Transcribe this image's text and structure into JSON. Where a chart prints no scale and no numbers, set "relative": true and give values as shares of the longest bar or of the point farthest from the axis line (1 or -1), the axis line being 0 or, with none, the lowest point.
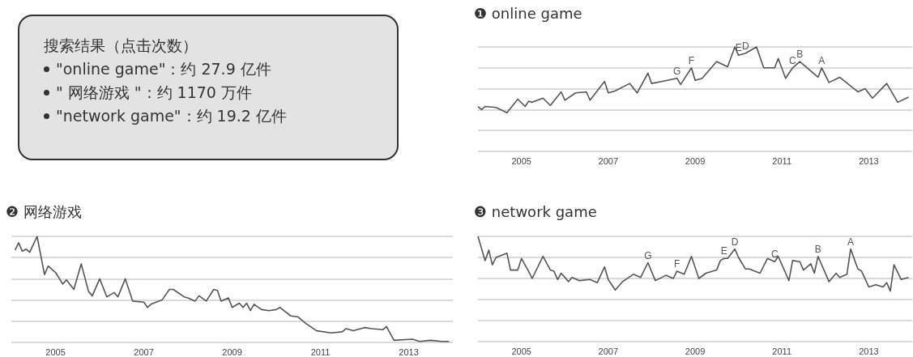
{
  "chart_data": [
    {
      "type": "other",
      "title": "搜索结果（点击次数）",
      "annotations": [
        "\"online game\"：约 27.9 亿件",
        "\" 网络游戏 \"：约 1170 万件",
        "\"network game\"：约 19.2 亿件"
      ]
    },
    {
      "type": "line",
      "title": "❶ online game",
      "relative": true,
      "color": "#555555",
      "grid": "y",
      "tick_labels": "x",
      "marker": "none",
      "xlim": [
        "2004-01",
        "2014-01"
      ],
      "xticks": [
        "2005",
        "2007",
        "2009",
        "2011",
        "2013"
      ],
      "x": [
        "2004-01",
        "2004-02",
        "2004-03",
        "2004-06",
        "2004-09",
        "2004-12",
        "2005-02",
        "2005-03",
        "2005-04",
        "2005-07",
        "2005-09",
        "2005-12",
        "2006-01",
        "2006-04",
        "2006-07",
        "2006-08",
        "2006-12",
        "2007-01",
        "2007-03",
        "2007-07",
        "2007-09",
        "2007-12",
        "2008-01",
        "2008-04",
        "2008-08",
        "2008-09",
        "2008-12",
        "2009-01",
        "2009-03",
        "2009-07",
        "2009-10",
        "2009-12",
        "2010-01",
        "2010-03",
        "2010-06",
        "2010-08",
        "2010-11",
        "2010-12",
        "2011-02",
        "2011-04",
        "2011-06",
        "2011-11",
        "2011-12",
        "2012-02",
        "2012-05",
        "2012-10",
        "2012-12",
        "2013-02",
        "2013-06",
        "2013-09",
        "2013-12"
      ],
      "values": [
        0.43,
        0.4,
        0.43,
        0.42,
        0.37,
        0.5,
        0.43,
        0.48,
        0.47,
        0.51,
        0.44,
        0.57,
        0.49,
        0.56,
        0.57,
        0.49,
        0.67,
        0.56,
        0.58,
        0.65,
        0.56,
        0.75,
        0.65,
        0.67,
        0.7,
        0.64,
        0.8,
        0.68,
        0.7,
        0.86,
        0.81,
        1.0,
        0.92,
        0.94,
        1.0,
        0.8,
        0.8,
        0.89,
        0.7,
        0.8,
        0.86,
        0.71,
        0.8,
        0.66,
        0.71,
        0.57,
        0.6,
        0.51,
        0.65,
        0.47,
        0.52
      ],
      "annotations": [
        {
          "text": "G",
          "x": "2008-08",
          "y": 0.7
        },
        {
          "text": "F",
          "x": "2008-12",
          "y": 0.8
        },
        {
          "text": "E",
          "x": "2010-01",
          "y": 0.92
        },
        {
          "text": "D",
          "x": "2010-03",
          "y": 0.94
        },
        {
          "text": "C",
          "x": "2011-04",
          "y": 0.8
        },
        {
          "text": "B",
          "x": "2011-06",
          "y": 0.86
        },
        {
          "text": "A",
          "x": "2011-12",
          "y": 0.8
        }
      ]
    },
    {
      "type": "line",
      "title": "❷ 网络游戏",
      "relative": true,
      "color": "#555555",
      "grid": "y",
      "tick_labels": "x",
      "marker": "none",
      "xlim": [
        "2004-01",
        "2014-01"
      ],
      "xticks": [
        "2005",
        "2007",
        "2009",
        "2011",
        "2013"
      ],
      "x": [
        "2004-02",
        "2004-03",
        "2004-04",
        "2004-05",
        "2004-06",
        "2004-08",
        "2004-10",
        "2004-11",
        "2005-01",
        "2005-03",
        "2005-04",
        "2005-06",
        "2005-08",
        "2005-10",
        "2005-11",
        "2006-01",
        "2006-03",
        "2006-05",
        "2006-06",
        "2006-08",
        "2006-10",
        "2007-01",
        "2007-02",
        "2007-03",
        "2007-06",
        "2007-08",
        "2007-09",
        "2007-12",
        "2008-01",
        "2008-03",
        "2008-04",
        "2008-06",
        "2008-08",
        "2008-09",
        "2008-10",
        "2008-12",
        "2009-01",
        "2009-03",
        "2009-04",
        "2009-05",
        "2009-06",
        "2009-07",
        "2009-09",
        "2009-11",
        "2010-01",
        "2010-02",
        "2010-05",
        "2010-07",
        "2010-09",
        "2010-12",
        "2011-04",
        "2011-07",
        "2011-08",
        "2011-10",
        "2012-01",
        "2012-03",
        "2012-06",
        "2012-07",
        "2012-09",
        "2013-02",
        "2013-04",
        "2013-07",
        "2013-10",
        "2013-12"
      ],
      "values": [
        0.87,
        0.94,
        0.86,
        0.88,
        0.85,
        1.0,
        0.64,
        0.72,
        0.66,
        0.55,
        0.59,
        0.5,
        0.74,
        0.48,
        0.44,
        0.6,
        0.43,
        0.47,
        0.43,
        0.6,
        0.39,
        0.38,
        0.33,
        0.36,
        0.4,
        0.5,
        0.5,
        0.43,
        0.42,
        0.39,
        0.44,
        0.39,
        0.5,
        0.49,
        0.39,
        0.42,
        0.33,
        0.37,
        0.33,
        0.37,
        0.3,
        0.36,
        0.31,
        0.3,
        0.31,
        0.33,
        0.25,
        0.24,
        0.18,
        0.11,
        0.09,
        0.1,
        0.13,
        0.11,
        0.14,
        0.13,
        0.12,
        0.15,
        0.02,
        0.03,
        0.01,
        0.02,
        0.01,
        0.01
      ]
    },
    {
      "type": "line",
      "title": "❸ network game",
      "relative": true,
      "color": "#555555",
      "grid": "y",
      "tick_labels": "x",
      "marker": "none",
      "xlim": [
        "2004-01",
        "2014-01"
      ],
      "xticks": [
        "2005",
        "2007",
        "2009",
        "2011",
        "2013"
      ],
      "x": [
        "2004-01",
        "2004-03",
        "2004-04",
        "2004-05",
        "2004-06",
        "2004-09",
        "2004-10",
        "2004-12",
        "2005-01",
        "2005-03",
        "2005-04",
        "2005-07",
        "2005-09",
        "2005-10",
        "2005-11",
        "2005-12",
        "2006-02",
        "2006-03",
        "2006-05",
        "2006-08",
        "2006-10",
        "2006-12",
        "2007-01",
        "2007-03",
        "2007-05",
        "2007-08",
        "2007-10",
        "2007-12",
        "2008-02",
        "2008-05",
        "2008-07",
        "2008-08",
        "2008-10",
        "2008-12",
        "2009-02",
        "2009-04",
        "2009-07",
        "2009-08",
        "2009-09",
        "2009-10",
        "2009-12",
        "2010-01",
        "2010-03",
        "2010-04",
        "2010-07",
        "2010-09",
        "2010-11",
        "2010-12",
        "2011-03",
        "2011-04",
        "2011-06",
        "2011-07",
        "2011-09",
        "2011-10",
        "2011-11",
        "2012-02",
        "2012-04",
        "2012-05",
        "2012-07",
        "2012-08",
        "2012-10",
        "2012-11",
        "2013-01",
        "2013-03",
        "2013-05",
        "2013-06",
        "2013-07",
        "2013-08",
        "2013-10",
        "2013-12"
      ],
      "values": [
        1.0,
        0.77,
        0.87,
        0.73,
        0.8,
        0.84,
        0.68,
        0.68,
        0.79,
        0.67,
        0.6,
        0.81,
        0.68,
        0.67,
        0.59,
        0.65,
        0.57,
        0.61,
        0.58,
        0.59,
        0.56,
        0.71,
        0.59,
        0.49,
        0.57,
        0.64,
        0.61,
        0.75,
        0.58,
        0.63,
        0.6,
        0.67,
        0.64,
        0.81,
        0.6,
        0.65,
        0.68,
        0.77,
        0.79,
        0.79,
        0.88,
        0.8,
        0.69,
        0.69,
        0.65,
        0.79,
        0.76,
        0.81,
        0.58,
        0.77,
        0.76,
        0.68,
        0.74,
        0.65,
        0.81,
        0.57,
        0.65,
        0.61,
        0.64,
        0.88,
        0.69,
        0.67,
        0.52,
        0.54,
        0.52,
        0.56,
        0.48,
        0.73,
        0.59,
        0.61
      ],
      "annotations": [
        {
          "text": "G",
          "x": "2007-12",
          "y": 0.75
        },
        {
          "text": "F",
          "x": "2008-08",
          "y": 0.67
        },
        {
          "text": "E",
          "x": "2009-09",
          "y": 0.79
        },
        {
          "text": "D",
          "x": "2009-12",
          "y": 0.88
        },
        {
          "text": "C",
          "x": "2010-11",
          "y": 0.76
        },
        {
          "text": "B",
          "x": "2011-11",
          "y": 0.81
        },
        {
          "text": "A",
          "x": "2012-08",
          "y": 0.88
        }
      ]
    }
  ]
}
